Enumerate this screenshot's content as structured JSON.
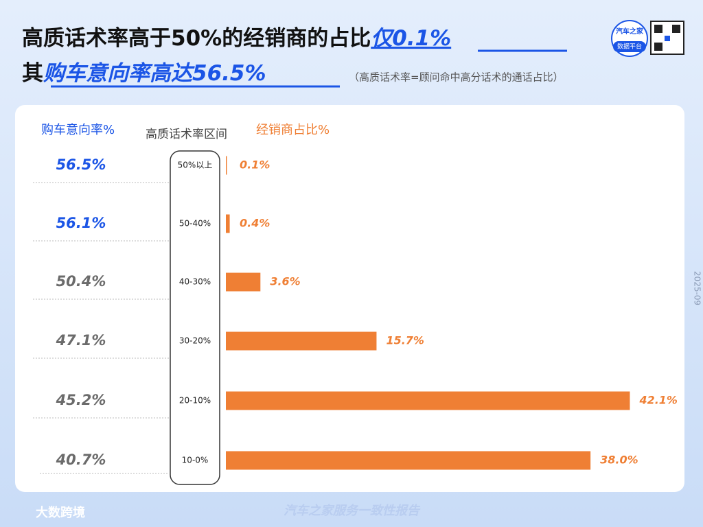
{
  "title_line1": {
    "main": "高质话术率高于50%的经销商的占比",
    "highlight": "仅0.1%"
  },
  "title_line2": {
    "main": "其",
    "highlight": "购车意向率高达56.5%",
    "note": "（高质话术率=顾问命中高分话术的通话占比）"
  },
  "logo": {
    "brand": "汽车之家",
    "platform": "数据平台"
  },
  "date": "2025-09",
  "footer": {
    "left": "大数跨境",
    "center": "汽车之家服务一致性报告"
  },
  "chart_data": {
    "type": "bar",
    "orientation": "horizontal",
    "category_header": "高质话术率区间",
    "categories": [
      "50%以上",
      "50-40%",
      "40-30%",
      "30-20%",
      "20-10%",
      "10-0%"
    ],
    "xlim": [
      0,
      45
    ],
    "series": [
      {
        "name": "购车意向率%",
        "colors": [
          "#1b55e6",
          "#1b55e6",
          "#6b6b6b",
          "#6b6b6b",
          "#6b6b6b",
          "#6b6b6b"
        ],
        "values": [
          56.5,
          56.1,
          50.4,
          47.1,
          45.2,
          40.7
        ],
        "value_labels": [
          "56.5%",
          "56.1%",
          "50.4%",
          "47.1%",
          "45.2%",
          "40.7%"
        ]
      },
      {
        "name": "经销商占比%",
        "color": "#ef7f34",
        "values": [
          0.1,
          0.4,
          3.6,
          15.7,
          42.1,
          38.0
        ],
        "value_labels": [
          "0.1%",
          "0.4%",
          "3.6%",
          "15.7%",
          "42.1%",
          "38.0%"
        ]
      }
    ]
  }
}
